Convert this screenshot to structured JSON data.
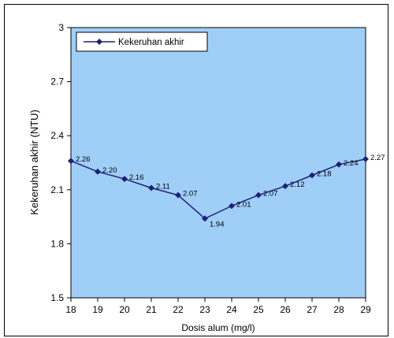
{
  "chart_data": {
    "type": "line",
    "xlabel": "Dosis alum (mg/l)",
    "ylabel": "Kekeruhan akhir (NTU)",
    "xlim": [
      18,
      29
    ],
    "ylim": [
      1.5,
      3
    ],
    "x_ticks": [
      "18",
      "19",
      "20",
      "21",
      "22",
      "23",
      "24",
      "25",
      "26",
      "27",
      "28",
      "29"
    ],
    "y_ticks": [
      "1.5",
      "1.8",
      "2.1",
      "2.4",
      "2.7",
      "3"
    ],
    "legend_position": "top-left",
    "plot_background": "#9fcff7",
    "series": [
      {
        "name": "Kekeruhan akhir",
        "color": "#1f1f7a",
        "marker": "diamond",
        "x": [
          18,
          19,
          20,
          21,
          22,
          23,
          24,
          25,
          26,
          27,
          28,
          29
        ],
        "values": [
          2.26,
          2.2,
          2.16,
          2.11,
          2.07,
          1.94,
          2.01,
          2.07,
          2.12,
          2.18,
          2.24,
          2.27
        ],
        "labels": [
          "2.26",
          "2.20",
          "2.16",
          "2.11",
          "2.07",
          "1.94",
          "2.01",
          "2.07",
          "2.12",
          "2.18",
          "2.24",
          "2.27"
        ]
      }
    ]
  }
}
